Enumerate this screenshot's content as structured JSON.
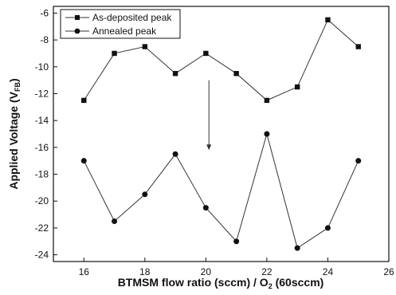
{
  "chart_data": {
    "type": "line",
    "xlabel": "BTMSM flow ratio (sccm) / O",
    "xlabel_sub": "2",
    "xlabel_tail": " (60sccm)",
    "ylabel": "Applied Voltage (V",
    "ylabel_sub": "FB",
    "ylabel_tail": ")",
    "xlim": [
      15,
      26
    ],
    "ylim": [
      -24.5,
      -5.5
    ],
    "xticks": [
      16,
      18,
      20,
      22,
      24,
      26
    ],
    "yticks": [
      -6,
      -8,
      -10,
      -12,
      -14,
      -16,
      -18,
      -20,
      -22,
      -24
    ],
    "grid": false,
    "legend_position": "top-left",
    "series": [
      {
        "name": "As-deposited peak",
        "marker": "square",
        "x": [
          16,
          17,
          18,
          19,
          20,
          21,
          22,
          23,
          24,
          25
        ],
        "y": [
          -12.5,
          -9.0,
          -8.5,
          -10.5,
          -9.0,
          -10.5,
          -12.5,
          -11.5,
          -6.5,
          -8.5
        ]
      },
      {
        "name": "Annealed peak",
        "marker": "circle",
        "x": [
          16,
          17,
          18,
          19,
          20,
          21,
          22,
          23,
          24,
          25
        ],
        "y": [
          -17.0,
          -21.5,
          -19.5,
          -16.5,
          -20.5,
          -23.0,
          -15.0,
          -23.5,
          -22.0,
          -17.0
        ]
      }
    ],
    "annotations": [
      {
        "type": "arrow",
        "direction": "down",
        "x": 20.1,
        "y_from": -11.0,
        "y_to": -16.2
      }
    ]
  }
}
